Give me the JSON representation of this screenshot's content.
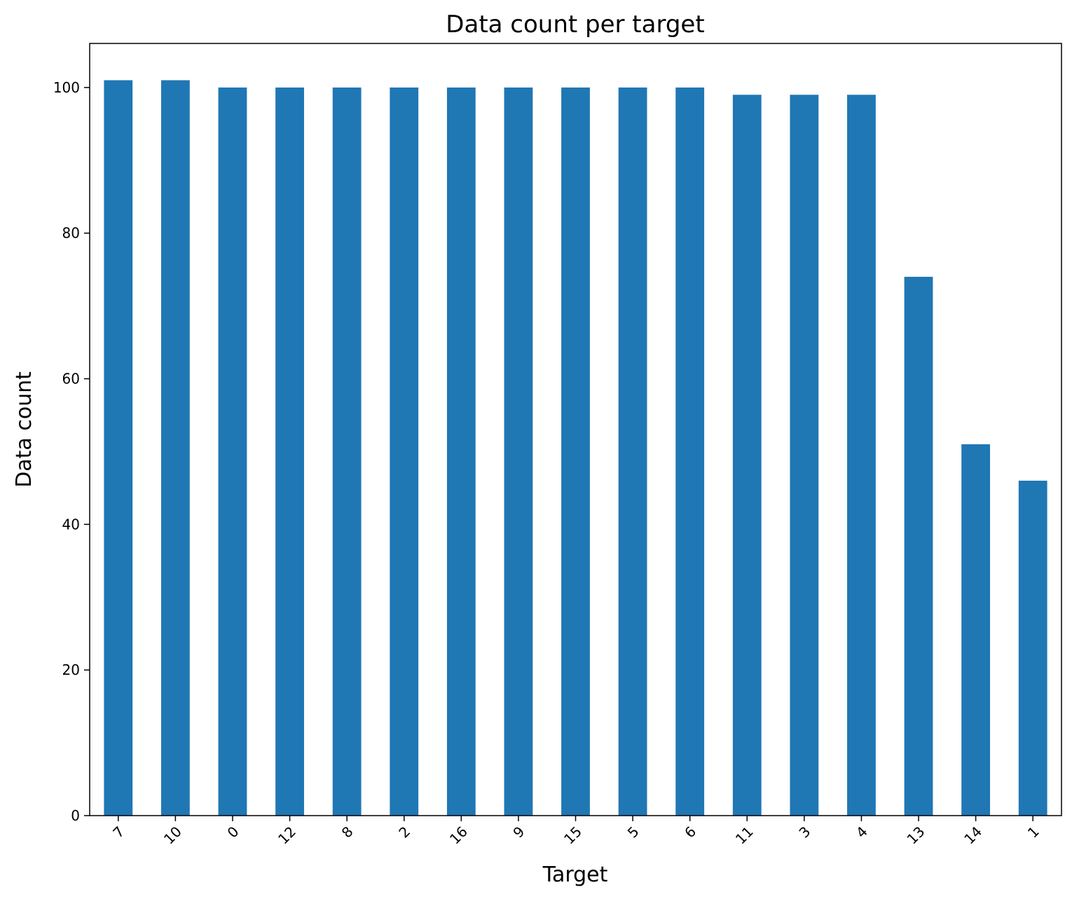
{
  "chart_data": {
    "type": "bar",
    "title": "Data count per target",
    "xlabel": "Target",
    "ylabel": "Data count",
    "categories": [
      "7",
      "10",
      "0",
      "12",
      "8",
      "2",
      "16",
      "9",
      "15",
      "5",
      "6",
      "11",
      "3",
      "4",
      "13",
      "14",
      "1"
    ],
    "values": [
      101,
      101,
      100,
      100,
      100,
      100,
      100,
      100,
      100,
      100,
      100,
      99,
      99,
      99,
      74,
      51,
      46
    ],
    "color": "#1f77b4",
    "ylim": [
      0,
      106.05
    ],
    "yticks": [
      0,
      20,
      40,
      60,
      80,
      100
    ],
    "grid": false
  }
}
